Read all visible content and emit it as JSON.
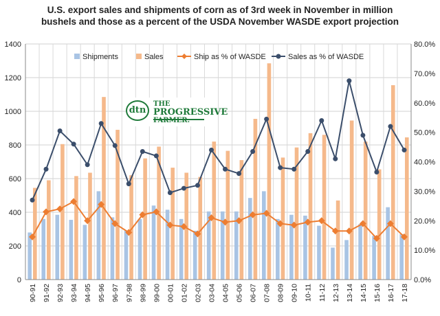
{
  "chart_data": {
    "type": "bar",
    "title": "U.S. export sales and shipments of corn as of 3rd week in November in million bushels and those as a percent of the USDA November WASDE export projection",
    "title_lines": [
      "U.S. export sales and shipments of corn as of 3rd week in November in million",
      "bushels and those as a percent of the USDA November WASDE export projection"
    ],
    "categories": [
      "90-91",
      "91-92",
      "92-93",
      "93-94",
      "94-95",
      "95-96",
      "96-97",
      "97-98",
      "98-99",
      "99-00",
      "00-01",
      "01-02",
      "02-03",
      "03-04",
      "04-05",
      "05-06",
      "06-07",
      "07-08",
      "08-09",
      "09-10",
      "10-11",
      "11-12",
      "12-13",
      "13-14",
      "14-15",
      "15-16",
      "16-17",
      "17-18"
    ],
    "series": [
      {
        "name": "Shipments",
        "type": "bar",
        "axis": "left",
        "color": "#a9c4e4",
        "values": [
          280,
          360,
          385,
          355,
          325,
          525,
          370,
          290,
          360,
          440,
          415,
          360,
          290,
          405,
          405,
          405,
          485,
          525,
          360,
          385,
          380,
          320,
          190,
          235,
          330,
          260,
          430,
          270
        ]
      },
      {
        "name": "Sales",
        "type": "bar",
        "axis": "left",
        "color": "#f5b98b",
        "values": [
          545,
          590,
          805,
          615,
          635,
          1085,
          890,
          620,
          720,
          790,
          665,
          635,
          610,
          820,
          765,
          710,
          955,
          1285,
          725,
          785,
          870,
          860,
          470,
          945,
          820,
          655,
          1155,
          845
        ]
      },
      {
        "name": "Ship as % of WASDE",
        "type": "line",
        "axis": "right",
        "color": "#ed7d31",
        "marker": "diamond",
        "values": [
          14.5,
          23.0,
          24.0,
          26.5,
          20.0,
          25.5,
          19.0,
          16.0,
          22.0,
          23.0,
          18.5,
          18.0,
          15.5,
          21.0,
          19.5,
          20.0,
          22.0,
          22.5,
          19.0,
          18.5,
          19.5,
          20.0,
          16.5,
          16.5,
          19.0,
          14.0,
          19.0,
          14.5
        ]
      },
      {
        "name": "Sales as % of WASDE",
        "type": "line",
        "axis": "right",
        "color": "#3b4e6b",
        "marker": "circle",
        "values": [
          27.0,
          37.5,
          50.5,
          46.0,
          39.0,
          53.0,
          45.5,
          32.5,
          43.5,
          42.0,
          29.5,
          31.0,
          32.0,
          44.0,
          37.5,
          36.0,
          43.5,
          54.5,
          38.0,
          37.5,
          43.5,
          54.0,
          41.0,
          67.5,
          49.0,
          36.5,
          52.0,
          44.0
        ]
      }
    ],
    "ylim": [
      0,
      1400
    ],
    "yticks": [
      "0",
      "200",
      "400",
      "600",
      "800",
      "1000",
      "1200",
      "1400"
    ],
    "y2lim": [
      0,
      80
    ],
    "y2ticks": [
      "0.0%",
      "10.0%",
      "20.0%",
      "30.0%",
      "40.0%",
      "50.0%",
      "60.0%",
      "70.0%",
      "80.0%"
    ],
    "xlabel": "",
    "ylabel": "",
    "grid": true,
    "legend": "top"
  },
  "logo": {
    "mark": "dtn",
    "line1": "THE",
    "line2": "PROGRESSIVE",
    "line3": "FARMER."
  }
}
